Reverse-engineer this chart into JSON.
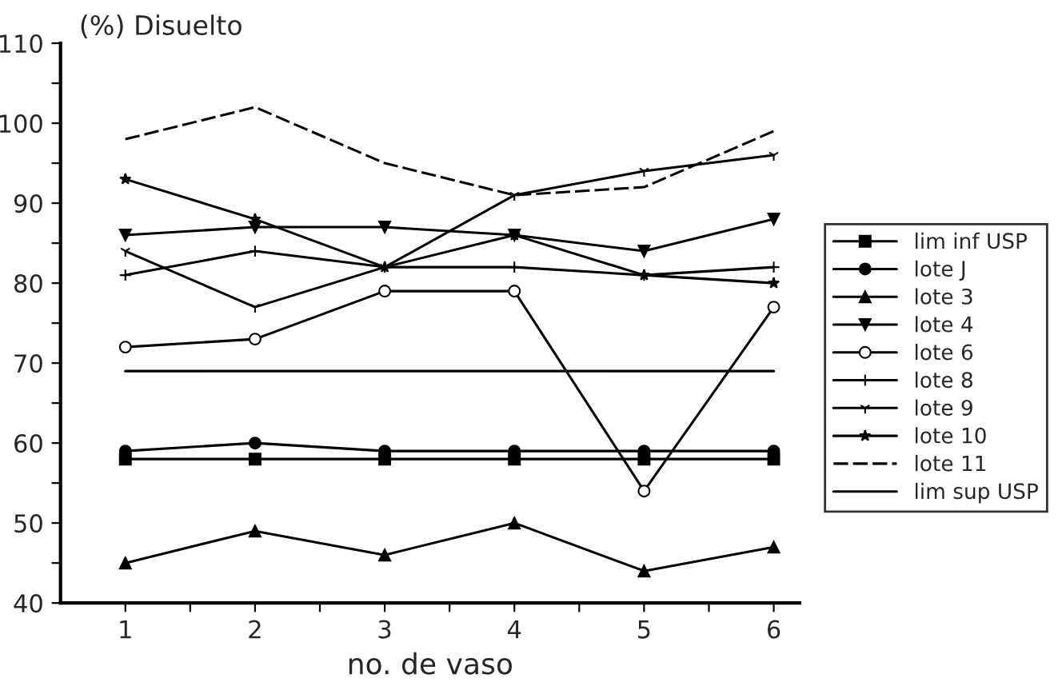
{
  "chart_data": {
    "type": "line",
    "ylabel": "(%) Disuelto",
    "xlabel": "no. de vaso",
    "x": [
      1,
      2,
      3,
      4,
      5,
      6
    ],
    "xlim": [
      0.5,
      6.2
    ],
    "xticks": [
      1,
      {
        "value": 1.5,
        "label": null
      },
      2,
      {
        "value": 2.5,
        "label": null
      },
      3,
      {
        "value": 3.5,
        "label": null
      },
      4,
      {
        "value": 4.5,
        "label": null
      },
      5,
      {
        "value": 5.5,
        "label": null
      },
      6
    ],
    "ylim": [
      40,
      110
    ],
    "yticks": [
      40,
      {
        "value": 45,
        "label": null
      },
      50,
      {
        "value": 55,
        "label": null
      },
      60,
      {
        "value": 65,
        "label": null
      },
      70,
      {
        "value": 75,
        "label": null
      },
      80,
      {
        "value": 85,
        "label": null
      },
      90,
      {
        "value": 95,
        "label": null
      },
      100,
      {
        "value": 105,
        "label": null
      },
      110
    ],
    "grid": false,
    "legend": "right",
    "series": [
      {
        "name": "lim inf USP",
        "color": "#000000",
        "marker": "square",
        "values": [
          58,
          58,
          58,
          58,
          58,
          58
        ]
      },
      {
        "name": "lote J",
        "color": "#000000",
        "marker": "circle",
        "values": [
          59,
          60,
          59,
          59,
          59,
          59
        ]
      },
      {
        "name": "lote 3",
        "color": "#000000",
        "marker": "triangle",
        "values": [
          45,
          49,
          46,
          50,
          44,
          47
        ]
      },
      {
        "name": "lote 4",
        "color": "#000000",
        "marker": "triangle_down",
        "values": [
          86,
          87,
          87,
          86,
          84,
          88
        ]
      },
      {
        "name": "lote 6",
        "color": "#000000",
        "marker": "open_circle",
        "values": [
          72,
          73,
          79,
          79,
          54,
          77
        ]
      },
      {
        "name": "lote 8",
        "color": "#000000",
        "marker": "plus",
        "values": [
          81,
          84,
          82,
          82,
          81,
          82
        ]
      },
      {
        "name": "lote 9",
        "color": "#000000",
        "marker": "cross",
        "values": [
          84,
          77,
          82,
          91,
          94,
          96
        ]
      },
      {
        "name": "lote 10",
        "color": "#000000",
        "marker": "star",
        "values": [
          93,
          88,
          82,
          86,
          81,
          80
        ]
      },
      {
        "name": "lote 11",
        "color": "#000000",
        "marker": "none",
        "line_style": "dashed",
        "values": [
          98,
          102,
          95,
          91,
          92,
          99
        ]
      },
      {
        "name": "lim sup USP",
        "color": "#000000",
        "marker": "none",
        "values": [
          69,
          69,
          69,
          69,
          69,
          69
        ]
      }
    ]
  }
}
